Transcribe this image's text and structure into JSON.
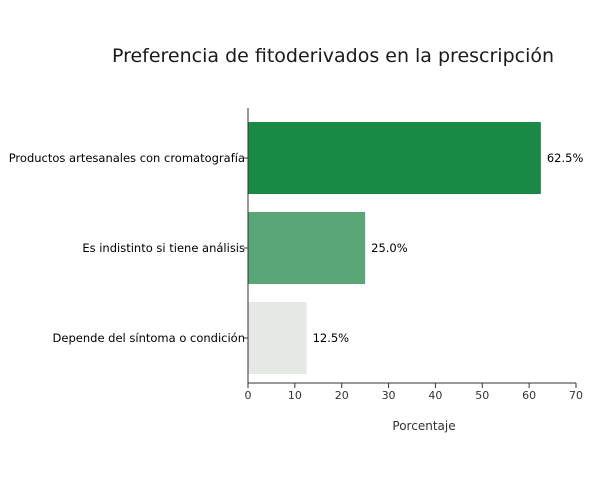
{
  "chart_data": {
    "type": "bar",
    "orientation": "horizontal",
    "title": "Preferencia de fitoderivados en la prescripción",
    "xlabel": "Porcentaje",
    "ylabel": "",
    "categories": [
      "Productos artesanales con cromatografía",
      "Es indistinto si tiene análisis",
      "Depende del síntoma o condición"
    ],
    "values": [
      62.5,
      25.0,
      12.5
    ],
    "value_labels": [
      "62.5%",
      "25.0%",
      "12.5%"
    ],
    "colors": [
      "#188a45",
      "#5aa677",
      "#e6e8e6"
    ],
    "xlim": [
      0,
      70
    ],
    "xticks": [
      0,
      10,
      20,
      30,
      40,
      50,
      60,
      70
    ],
    "grid": false,
    "legend": "none"
  }
}
